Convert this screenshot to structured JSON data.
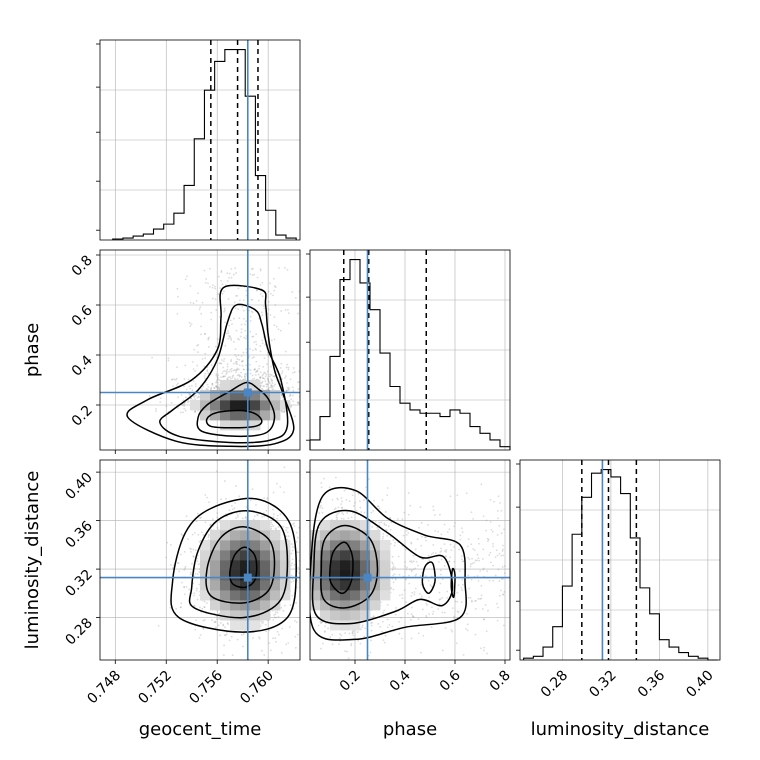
{
  "chart_data": {
    "type": "corner",
    "parameters": [
      "geocent_time",
      "phase",
      "luminosity_distance"
    ],
    "truth_values": {
      "geocent_time": 0.7584,
      "phase": 0.25,
      "luminosity_distance": 0.313
    },
    "truth_color": "#4a86c4",
    "ranges": {
      "geocent_time": [
        0.7468,
        0.7625
      ],
      "phase": [
        0.02,
        0.82
      ],
      "luminosity_distance": [
        0.245,
        0.41
      ]
    },
    "quantiles": {
      "geocent_time": [
        0.7555,
        0.7576,
        0.7592
      ],
      "phase": [
        0.155,
        0.255,
        0.485
      ],
      "luminosity_distance": [
        0.296,
        0.318,
        0.341
      ]
    },
    "ticks": {
      "geocent_time": [
        0.748,
        0.752,
        0.756,
        0.76
      ],
      "phase_x": [
        0.2,
        0.4,
        0.6,
        0.8
      ],
      "phase_y": [
        0.2,
        0.4,
        0.6,
        0.8
      ],
      "luminosity_distance_x": [
        0.28,
        0.32,
        0.36,
        0.4
      ],
      "luminosity_distance_y": [
        0.28,
        0.32,
        0.36,
        0.4
      ]
    },
    "tick_labels": {
      "geocent_time": [
        "0.748",
        "0.752",
        "0.756",
        "0.760"
      ],
      "phase_x": [
        "0.2",
        "0.4",
        "0.6",
        "0.8"
      ],
      "phase_y": [
        "0.2",
        "0.4",
        "0.6",
        "0.8"
      ],
      "luminosity_distance_x": [
        "0.28",
        "0.32",
        "0.36",
        "0.40"
      ],
      "luminosity_distance_y": [
        "0.28",
        "0.32",
        "0.36",
        "0.40"
      ]
    },
    "axis_labels": {
      "x": [
        "geocent_time",
        "phase",
        "luminosity_distance"
      ],
      "y": [
        "phase",
        "luminosity_distance"
      ]
    },
    "histograms": {
      "geocent_time": {
        "bin_edges": [
          0.7478,
          0.7486,
          0.7494,
          0.7502,
          0.751,
          0.7518,
          0.7526,
          0.7534,
          0.7542,
          0.755,
          0.7558,
          0.7566,
          0.7574,
          0.7582,
          0.759,
          0.7598,
          0.7606,
          0.7614,
          0.7622
        ],
        "counts": [
          1,
          2,
          4,
          6,
          11,
          16,
          27,
          55,
          102,
          151,
          180,
          192,
          192,
          145,
          65,
          30,
          5,
          2
        ]
      },
      "phase": {
        "bin_edges": [
          0.02,
          0.06,
          0.1,
          0.14,
          0.18,
          0.22,
          0.26,
          0.3,
          0.34,
          0.38,
          0.42,
          0.46,
          0.5,
          0.54,
          0.58,
          0.62,
          0.66,
          0.7,
          0.74,
          0.78,
          0.82
        ],
        "counts": [
          3,
          10,
          28,
          51,
          57,
          50,
          42,
          29,
          19,
          14,
          12,
          11,
          11,
          10,
          12,
          11,
          7,
          5,
          3,
          1
        ]
      },
      "luminosity_distance": {
        "bin_edges": [
          0.248,
          0.256,
          0.264,
          0.272,
          0.28,
          0.288,
          0.296,
          0.304,
          0.312,
          0.32,
          0.328,
          0.336,
          0.344,
          0.352,
          0.36,
          0.368,
          0.376,
          0.384,
          0.392,
          0.4,
          0.408
        ],
        "counts": [
          1,
          2,
          7,
          18,
          40,
          68,
          88,
          101,
          103,
          99,
          90,
          66,
          39,
          25,
          11,
          7,
          4,
          2,
          1,
          0
        ]
      }
    },
    "contours_2d": {
      "phase_vs_geocent_time": [
        [
          [
            0.7555,
            0.115
          ],
          [
            0.7572,
            0.109
          ],
          [
            0.759,
            0.115
          ],
          [
            0.7595,
            0.135
          ],
          [
            0.759,
            0.165
          ],
          [
            0.7578,
            0.178
          ],
          [
            0.756,
            0.17
          ],
          [
            0.7552,
            0.145
          ]
        ],
        [
          [
            0.7548,
            0.095
          ],
          [
            0.7575,
            0.075
          ],
          [
            0.7598,
            0.088
          ],
          [
            0.7605,
            0.15
          ],
          [
            0.76,
            0.225
          ],
          [
            0.7592,
            0.265
          ],
          [
            0.7583,
            0.29
          ],
          [
            0.757,
            0.255
          ],
          [
            0.7552,
            0.2
          ],
          [
            0.7545,
            0.15
          ]
        ],
        [
          [
            0.753,
            0.075
          ],
          [
            0.757,
            0.05
          ],
          [
            0.7602,
            0.06
          ],
          [
            0.7615,
            0.115
          ],
          [
            0.761,
            0.3
          ],
          [
            0.76,
            0.42
          ],
          [
            0.7595,
            0.525
          ],
          [
            0.759,
            0.58
          ],
          [
            0.7575,
            0.6
          ],
          [
            0.7568,
            0.53
          ],
          [
            0.756,
            0.38
          ],
          [
            0.7545,
            0.26
          ],
          [
            0.7525,
            0.18
          ],
          [
            0.7515,
            0.13
          ]
        ],
        [
          [
            0.7528,
            0.055
          ],
          [
            0.757,
            0.035
          ],
          [
            0.7605,
            0.045
          ],
          [
            0.762,
            0.1
          ],
          [
            0.7612,
            0.24
          ],
          [
            0.7605,
            0.34
          ],
          [
            0.76,
            0.48
          ],
          [
            0.7598,
            0.6
          ],
          [
            0.7595,
            0.66
          ],
          [
            0.7565,
            0.67
          ],
          [
            0.7563,
            0.55
          ],
          [
            0.756,
            0.42
          ],
          [
            0.754,
            0.3
          ],
          [
            0.7505,
            0.22
          ],
          [
            0.749,
            0.15
          ]
        ]
      ],
      "luminosity_distance_vs_geocent_time": [
        [
          [
            0.7572,
            0.308
          ],
          [
            0.7582,
            0.305
          ],
          [
            0.759,
            0.312
          ],
          [
            0.759,
            0.33
          ],
          [
            0.7582,
            0.338
          ],
          [
            0.7574,
            0.332
          ],
          [
            0.757,
            0.318
          ]
        ],
        [
          [
            0.7555,
            0.298
          ],
          [
            0.758,
            0.292
          ],
          [
            0.76,
            0.302
          ],
          [
            0.7605,
            0.325
          ],
          [
            0.76,
            0.345
          ],
          [
            0.758,
            0.355
          ],
          [
            0.7562,
            0.345
          ],
          [
            0.7552,
            0.32
          ]
        ],
        [
          [
            0.7542,
            0.288
          ],
          [
            0.758,
            0.28
          ],
          [
            0.7608,
            0.292
          ],
          [
            0.7615,
            0.32
          ],
          [
            0.761,
            0.355
          ],
          [
            0.7585,
            0.368
          ],
          [
            0.756,
            0.36
          ],
          [
            0.7545,
            0.335
          ],
          [
            0.754,
            0.305
          ]
        ],
        [
          [
            0.753,
            0.28
          ],
          [
            0.758,
            0.268
          ],
          [
            0.7615,
            0.28
          ],
          [
            0.7622,
            0.32
          ],
          [
            0.7616,
            0.36
          ],
          [
            0.759,
            0.378
          ],
          [
            0.7555,
            0.37
          ],
          [
            0.7535,
            0.35
          ],
          [
            0.7525,
            0.31
          ]
        ]
      ],
      "luminosity_distance_vs_phase": [
        [
          [
            0.105,
            0.308
          ],
          [
            0.15,
            0.3
          ],
          [
            0.185,
            0.31
          ],
          [
            0.19,
            0.33
          ],
          [
            0.16,
            0.342
          ],
          [
            0.115,
            0.335
          ],
          [
            0.1,
            0.32
          ]
        ],
        [
          [
            0.075,
            0.295
          ],
          [
            0.16,
            0.288
          ],
          [
            0.26,
            0.298
          ],
          [
            0.29,
            0.32
          ],
          [
            0.26,
            0.345
          ],
          [
            0.16,
            0.356
          ],
          [
            0.08,
            0.345
          ],
          [
            0.065,
            0.32
          ]
        ],
        [
          [
            0.045,
            0.282
          ],
          [
            0.18,
            0.275
          ],
          [
            0.36,
            0.285
          ],
          [
            0.46,
            0.295
          ],
          [
            0.55,
            0.29
          ],
          [
            0.59,
            0.305
          ],
          [
            0.555,
            0.33
          ],
          [
            0.46,
            0.33
          ],
          [
            0.33,
            0.35
          ],
          [
            0.18,
            0.368
          ],
          [
            0.06,
            0.358
          ],
          [
            0.035,
            0.32
          ]
        ],
        [
          [
            0.035,
            0.27
          ],
          [
            0.2,
            0.262
          ],
          [
            0.4,
            0.272
          ],
          [
            0.62,
            0.28
          ],
          [
            0.64,
            0.31
          ],
          [
            0.62,
            0.34
          ],
          [
            0.48,
            0.348
          ],
          [
            0.33,
            0.362
          ],
          [
            0.2,
            0.385
          ],
          [
            0.07,
            0.38
          ],
          [
            0.025,
            0.33
          ]
        ],
        [
          [
            0.47,
            0.308
          ],
          [
            0.495,
            0.3
          ],
          [
            0.52,
            0.31
          ],
          [
            0.51,
            0.325
          ],
          [
            0.48,
            0.322
          ]
        ],
        [
          [
            0.585,
            0.305
          ],
          [
            0.595,
            0.297
          ],
          [
            0.6,
            0.315
          ],
          [
            0.59,
            0.32
          ]
        ]
      ]
    },
    "density_peaks": {
      "phase_vs_geocent_time": {
        "center": [
          0.7578,
          0.2
        ],
        "sigma": [
          0.0018,
          0.045
        ]
      },
      "luminosity_distance_vs_geocent_time": {
        "center": [
          0.7582,
          0.318
        ],
        "sigma": [
          0.0018,
          0.022
        ]
      },
      "luminosity_distance_vs_phase": {
        "center": [
          0.16,
          0.318
        ],
        "sigma": [
          0.09,
          0.022
        ]
      }
    }
  }
}
